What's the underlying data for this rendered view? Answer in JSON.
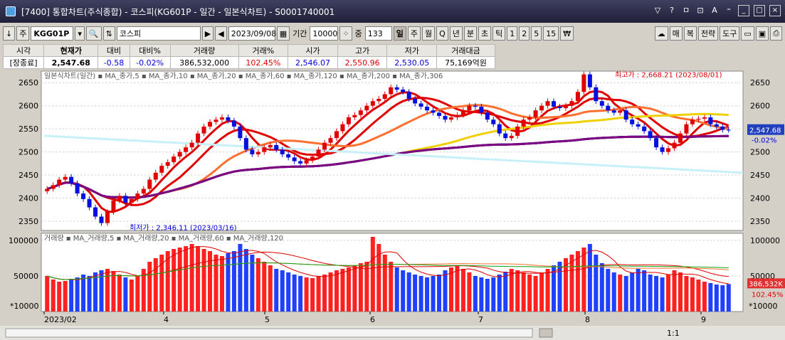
{
  "window": {
    "title": "[7400] 통합차트(주식종합) - 코스피(KG601P - 일간 - 일본식차트) - S0001740001",
    "buttons": [
      "▽",
      "?",
      "ㅁ",
      "⊡",
      "A",
      "⁼"
    ]
  },
  "toolbar": {
    "code": "KGG01P",
    "name": "코스피",
    "date": "2023/09/08",
    "period_label": "기간",
    "period_value": "10000",
    "count_label": "중",
    "count_value": "133",
    "intervals": [
      "일",
      "주",
      "월",
      "Q",
      "년",
      "분",
      "초",
      "틱",
      "1",
      "2",
      "5",
      "15",
      "₩"
    ],
    "right_buttons": [
      "매",
      "복",
      "전략",
      "도구"
    ],
    "arrows": [
      "▶",
      "◀"
    ]
  },
  "quote": {
    "headers": [
      "시각",
      "현재가",
      "대비",
      "대비%",
      "거래량",
      "거래%",
      "시가",
      "고가",
      "저가",
      "거래대금"
    ],
    "values": [
      "[장종료]",
      "2,547.68",
      "-0.58",
      "-0.02%",
      "386,532,000",
      "102.45%",
      "2,546.07",
      "2,550.96",
      "2,530.05",
      "75,169억원"
    ]
  },
  "chart_data": {
    "type": "candlestick",
    "price_legend": "일본식차트(일간)",
    "price_series": [
      "MA_종가,5",
      "MA_종가,10",
      "MA_종가,20",
      "MA_종가,60",
      "MA_종가,120",
      "MA_종가,200",
      "MA_종가,306"
    ],
    "volume_legend": "거래량",
    "volume_series": [
      "MA_거래량,5",
      "MA_거래량,20",
      "MA_거래량,60",
      "MA_거래량,120"
    ],
    "price_ticks": [
      2650,
      2600,
      2550,
      2500,
      2450,
      2400,
      2350
    ],
    "volume_ticks": [
      100000,
      50000
    ],
    "volume_unit": "*10000",
    "x_labels": [
      "2023/02",
      "4",
      "5",
      "6",
      "7",
      "8",
      "9"
    ],
    "annotation_high": "최고가 : 2,668.21 (2023/08/01)",
    "annotation_low": "최저가 : 2,346.11 (2023/03/16)",
    "current_price": "2,547.68",
    "current_change": "-0.02%",
    "current_volume": "386,532K",
    "current_volume_pct": "102.45%",
    "closes": [
      2420,
      2428,
      2440,
      2446,
      2432,
      2410,
      2398,
      2380,
      2360,
      2346,
      2370,
      2395,
      2405,
      2390,
      2398,
      2410,
      2420,
      2440,
      2455,
      2470,
      2478,
      2490,
      2500,
      2510,
      2520,
      2540,
      2555,
      2565,
      2570,
      2575,
      2568,
      2555,
      2530,
      2505,
      2495,
      2500,
      2510,
      2515,
      2505,
      2495,
      2488,
      2480,
      2475,
      2482,
      2490,
      2505,
      2520,
      2530,
      2545,
      2560,
      2575,
      2580,
      2590,
      2600,
      2610,
      2615,
      2625,
      2640,
      2635,
      2630,
      2615,
      2605,
      2598,
      2590,
      2585,
      2578,
      2570,
      2575,
      2580,
      2590,
      2600,
      2598,
      2585,
      2570,
      2560,
      2540,
      2530,
      2535,
      2555,
      2570,
      2575,
      2590,
      2600,
      2610,
      2598,
      2595,
      2600,
      2610,
      2630,
      2668,
      2640,
      2610,
      2600,
      2590,
      2585,
      2590,
      2570,
      2560,
      2555,
      2545,
      2530,
      2510,
      2500,
      2508,
      2520,
      2540,
      2560,
      2570,
      2572,
      2575,
      2560,
      2555,
      2548,
      2547.68
    ],
    "volumes": [
      50000,
      45000,
      42000,
      43000,
      46000,
      48000,
      52000,
      50000,
      55000,
      58000,
      60000,
      57000,
      52000,
      48000,
      45000,
      50000,
      60000,
      70000,
      75000,
      80000,
      85000,
      88000,
      90000,
      92000,
      95000,
      92000,
      88000,
      85000,
      80000,
      78000,
      82000,
      85000,
      95000,
      88000,
      80000,
      75000,
      70000,
      65000,
      60000,
      58000,
      55000,
      52000,
      50000,
      48000,
      47000,
      50000,
      52000,
      55000,
      58000,
      60000,
      62000,
      65000,
      68000,
      70000,
      105000,
      95000,
      80000,
      70000,
      62000,
      58000,
      55000,
      52000,
      50000,
      48000,
      50000,
      52000,
      58000,
      62000,
      65000,
      60000,
      55000,
      50000,
      48000,
      46000,
      48000,
      52000,
      56000,
      60000,
      58000,
      55000,
      52000,
      50000,
      55000,
      60000,
      65000,
      70000,
      75000,
      80000,
      85000,
      90000,
      95000,
      80000,
      68000,
      60000,
      55000,
      52000,
      50000,
      55000,
      60000,
      58000,
      52000,
      50000,
      48000,
      52000,
      58000,
      55000,
      50000,
      48000,
      45000,
      42000,
      40000,
      38000,
      37000,
      38653
    ]
  },
  "bottom_bar": {
    "zoom": "1:1"
  }
}
